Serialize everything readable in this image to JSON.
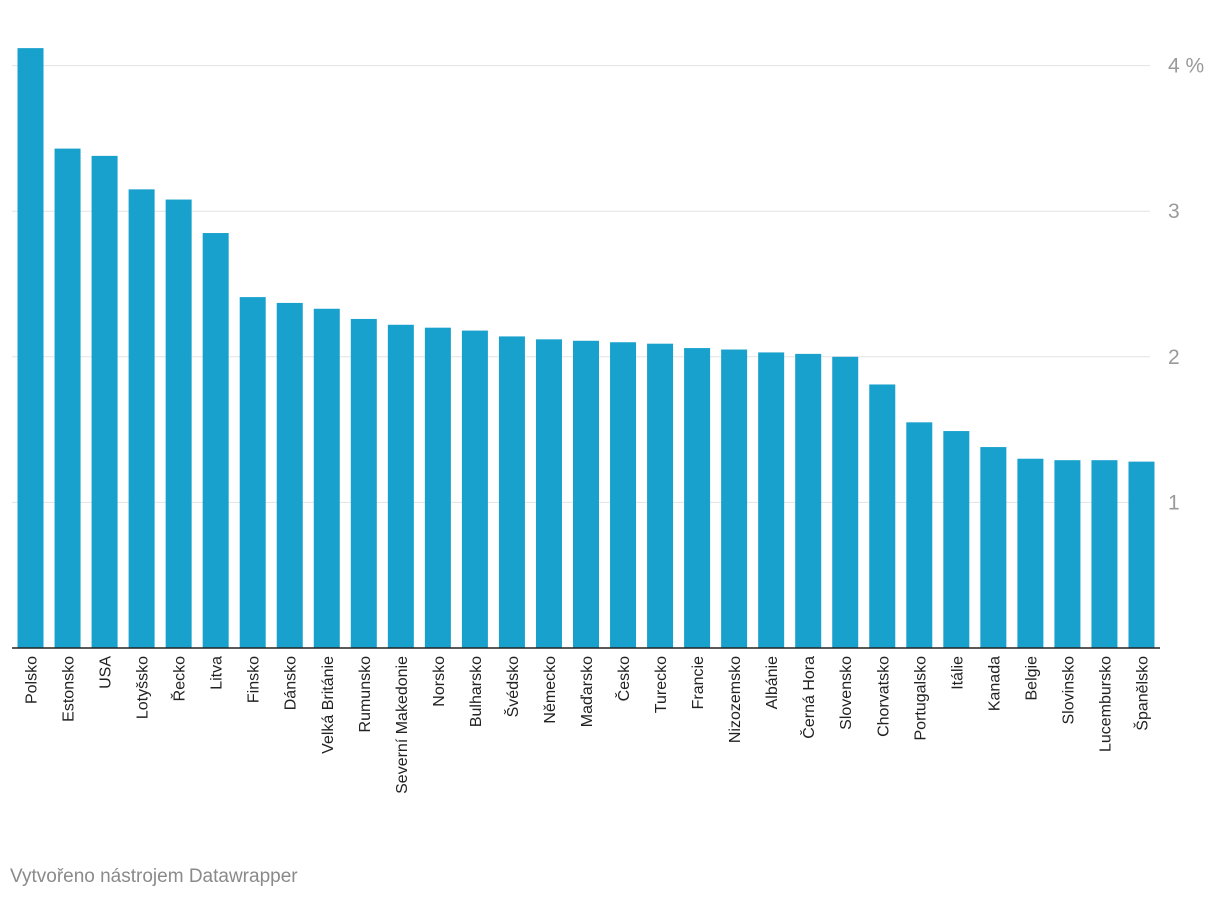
{
  "chart_data": {
    "type": "bar",
    "categories": [
      "Polsko",
      "Estonsko",
      "USA",
      "Lotyšsko",
      "Řecko",
      "Litva",
      "Finsko",
      "Dánsko",
      "Velká Británie",
      "Rumunsko",
      "Severní Makedonie",
      "Norsko",
      "Bulharsko",
      "Švédsko",
      "Německo",
      "Maďarsko",
      "Česko",
      "Turecko",
      "Francie",
      "Nizozemsko",
      "Albánie",
      "Černá Hora",
      "Slovensko",
      "Chorvatsko",
      "Portugalsko",
      "Itálie",
      "Kanada",
      "Belgie",
      "Slovinsko",
      "Lucembursko",
      "Španělsko"
    ],
    "values": [
      4.12,
      3.43,
      3.38,
      3.15,
      3.08,
      2.85,
      2.41,
      2.37,
      2.33,
      2.26,
      2.22,
      2.2,
      2.18,
      2.14,
      2.12,
      2.11,
      2.1,
      2.09,
      2.06,
      2.05,
      2.03,
      2.02,
      2.0,
      1.81,
      1.55,
      1.49,
      1.38,
      1.3,
      1.29,
      1.29,
      1.28
    ],
    "ylim": [
      0,
      4.3
    ],
    "yticks": [
      1,
      2,
      3,
      4
    ],
    "ytick_labels": [
      "1",
      "2",
      "3",
      "4 %"
    ],
    "grid": true,
    "bar_color": "#18a1cd"
  },
  "footer": {
    "credit": "Vytvořeno nástrojem Datawrapper"
  }
}
